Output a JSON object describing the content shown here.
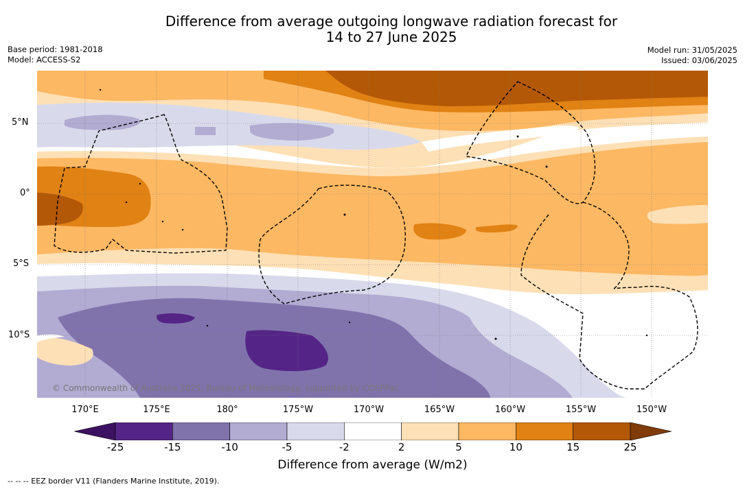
{
  "title": {
    "line1": "Difference from average outgoing longwave radiation forecast for",
    "line2": "14 to 27 June 2025"
  },
  "meta": {
    "base_period": "Base period: 1981-2018",
    "model": "Model: ACCESS-S2",
    "model_run": "Model run: 31/05/2025",
    "issued": "Issued: 03/06/2025"
  },
  "map": {
    "lat_ticks": [
      "5°N",
      "0°",
      "5°S",
      "10°S"
    ],
    "lon_ticks": [
      "170°E",
      "175°E",
      "180°",
      "175°W",
      "170°W",
      "165°W",
      "160°W",
      "155°W",
      "150°W"
    ],
    "copyright": "© Commonwealth of Australia 2025, Bureau of Meteorology, supported by COSPPac",
    "border_color": "#000000"
  },
  "colorbar": {
    "label": "Difference from average (W/m2)",
    "ticks": [
      "-25",
      "-15",
      "-10",
      "-5",
      "-2",
      "2",
      "5",
      "10",
      "15",
      "25"
    ],
    "colors": [
      "#3d1161",
      "#542586",
      "#8073ac",
      "#b2abd2",
      "#d8daeb",
      "#ffffff",
      "#fee0b6",
      "#fdb863",
      "#e08214",
      "#b35806",
      "#7f3b08"
    ]
  },
  "footnote": "--  --  -- EEZ border V11 (Flanders Marine Institute, 2019)."
}
